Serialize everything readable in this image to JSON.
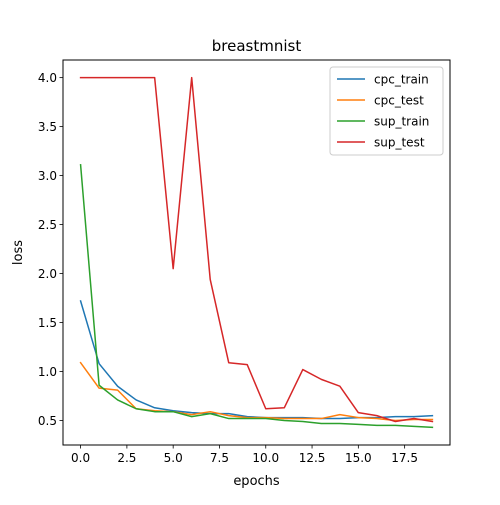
{
  "chart_data": {
    "type": "line",
    "title": "breastmnist",
    "xlabel": "epochs",
    "ylabel": "loss",
    "xlim": [
      -0.95,
      19.95
    ],
    "ylim": [
      0.25,
      4.18
    ],
    "xticks": [
      0.0,
      2.5,
      5.0,
      7.5,
      10.0,
      12.5,
      15.0,
      17.5
    ],
    "xtick_labels": [
      "0.0",
      "2.5",
      "5.0",
      "7.5",
      "10.0",
      "12.5",
      "15.0",
      "17.5"
    ],
    "yticks": [
      0.5,
      1.0,
      1.5,
      2.0,
      2.5,
      3.0,
      3.5,
      4.0
    ],
    "ytick_labels": [
      "0.5",
      "1.0",
      "1.5",
      "2.0",
      "2.5",
      "3.0",
      "3.5",
      "4.0"
    ],
    "grid": false,
    "legend_position": "top-right",
    "x": [
      0,
      1,
      2,
      3,
      4,
      5,
      6,
      7,
      8,
      9,
      10,
      11,
      12,
      13,
      14,
      15,
      16,
      17,
      18,
      19
    ],
    "series": [
      {
        "name": "cpc_train",
        "color": "#1f77b4",
        "values": [
          1.72,
          1.08,
          0.85,
          0.71,
          0.63,
          0.6,
          0.58,
          0.57,
          0.57,
          0.54,
          0.53,
          0.53,
          0.53,
          0.52,
          0.52,
          0.53,
          0.53,
          0.54,
          0.54,
          0.55
        ]
      },
      {
        "name": "cpc_test",
        "color": "#ff7f0e",
        "values": [
          1.09,
          0.83,
          0.81,
          0.62,
          0.6,
          0.59,
          0.56,
          0.59,
          0.55,
          0.53,
          0.53,
          0.52,
          0.52,
          0.52,
          0.56,
          0.53,
          0.52,
          0.5,
          0.51,
          0.51
        ]
      },
      {
        "name": "sup_train",
        "color": "#2ca02c",
        "values": [
          3.11,
          0.86,
          0.71,
          0.62,
          0.59,
          0.59,
          0.54,
          0.57,
          0.52,
          0.52,
          0.52,
          0.5,
          0.49,
          0.47,
          0.47,
          0.46,
          0.45,
          0.45,
          0.44,
          0.43
        ]
      },
      {
        "name": "sup_test",
        "color": "#d62728",
        "values": [
          4.0,
          4.0,
          4.0,
          4.0,
          4.0,
          2.05,
          4.0,
          1.94,
          1.09,
          1.07,
          0.62,
          0.63,
          1.02,
          0.92,
          0.85,
          0.58,
          0.55,
          0.49,
          0.52,
          0.49
        ]
      }
    ]
  }
}
